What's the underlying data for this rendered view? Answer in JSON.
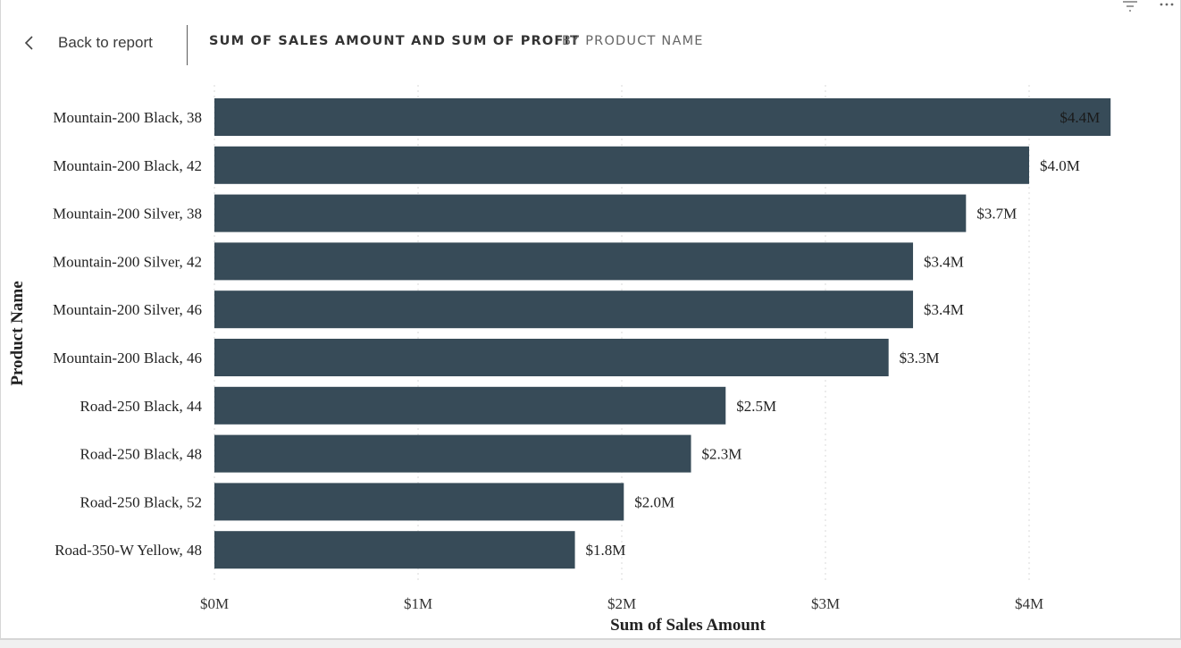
{
  "header": {
    "back_label": "Back to report",
    "title_main": "SUM OF SALES AMOUNT AND SUM OF PROFIT",
    "title_sub": "BY PRODUCT NAME"
  },
  "icons": {
    "back": "chevron-left-icon",
    "filter": "filter-icon",
    "more": "more-options-icon"
  },
  "colors": {
    "bar": "#374b58",
    "grid": "#d9d9d9"
  },
  "chart_data": {
    "type": "bar",
    "orientation": "horizontal",
    "categories": [
      "Mountain-200 Black, 38",
      "Mountain-200 Black, 42",
      "Mountain-200 Silver, 38",
      "Mountain-200 Silver, 42",
      "Mountain-200 Silver, 46",
      "Mountain-200 Black, 46",
      "Road-250 Black, 44",
      "Road-250 Black, 48",
      "Road-250 Black, 52",
      "Road-350-W Yellow, 48"
    ],
    "values": [
      4.4,
      4.0,
      3.69,
      3.43,
      3.43,
      3.31,
      2.51,
      2.34,
      2.01,
      1.77
    ],
    "value_labels": [
      "$4.4M",
      "$4.0M",
      "$3.7M",
      "$3.4M",
      "$3.4M",
      "$3.3M",
      "$2.5M",
      "$2.3M",
      "$2.0M",
      "$1.8M"
    ],
    "value_unit": "millions USD",
    "xlabel": "Sum of Sales Amount",
    "ylabel": "Product Name",
    "xlim": [
      0,
      4.4
    ],
    "x_ticks": [
      0,
      1,
      2,
      3,
      4
    ],
    "x_tick_labels": [
      "$0M",
      "$1M",
      "$2M",
      "$3M",
      "$4M"
    ],
    "grid": true,
    "grid_style": "dotted vertical"
  }
}
